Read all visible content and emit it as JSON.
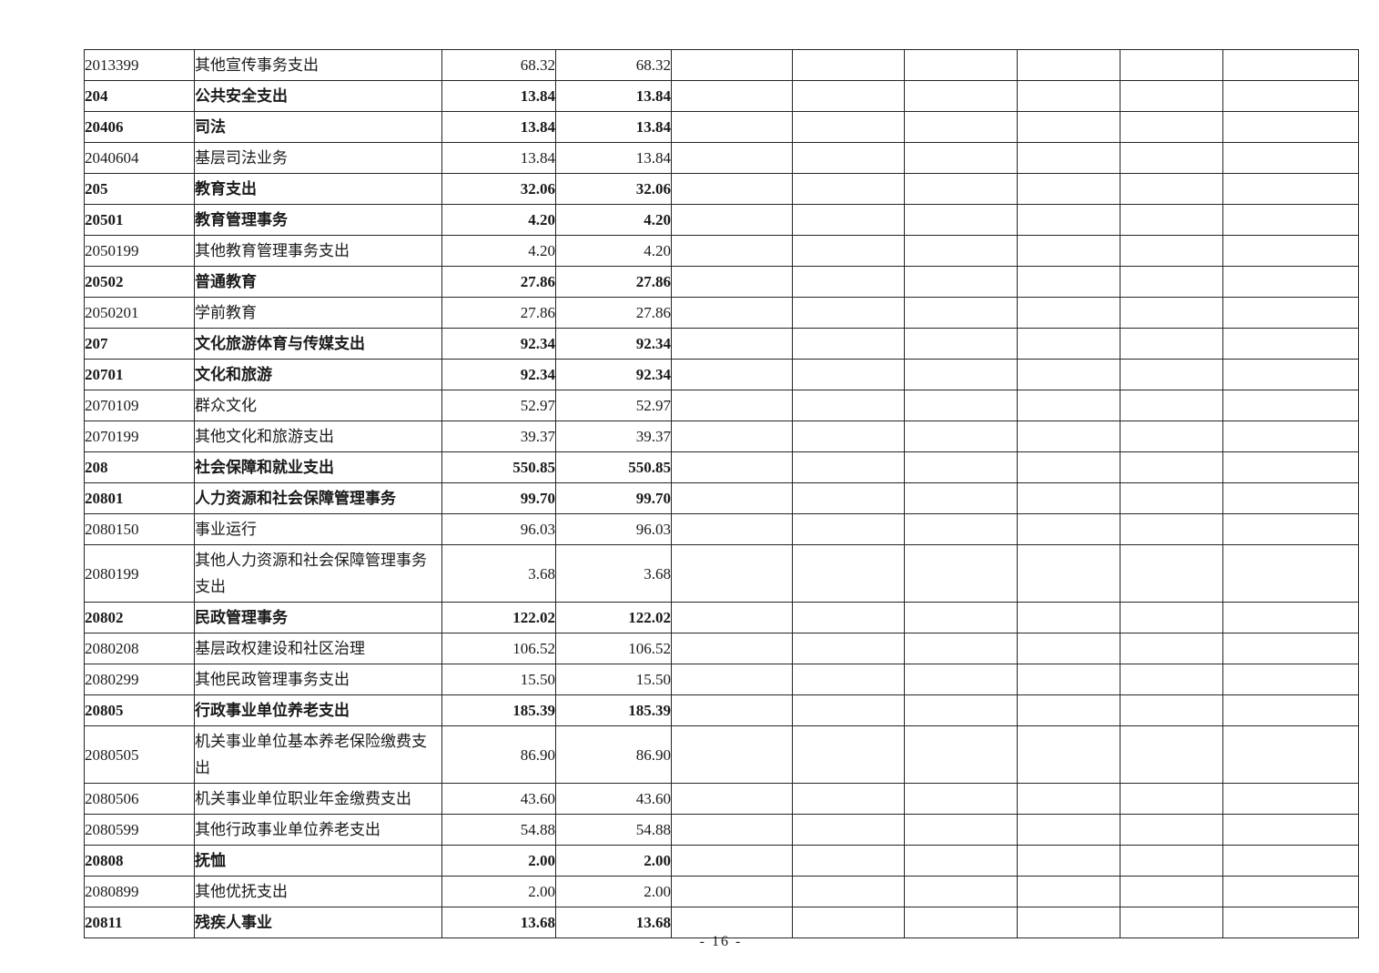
{
  "page": {
    "page_number": "- 16 -"
  },
  "table": {
    "column_keys": [
      "code",
      "name",
      "amount1",
      "amount2",
      "empty1",
      "empty2",
      "empty3",
      "empty4",
      "empty5",
      "empty6"
    ],
    "rows": [
      {
        "code": "2013399",
        "name": "其他宣传事务支出",
        "amount1": "68.32",
        "amount2": "68.32",
        "bold": false,
        "tall": false
      },
      {
        "code": "204",
        "name": "公共安全支出",
        "amount1": "13.84",
        "amount2": "13.84",
        "bold": true,
        "tall": false
      },
      {
        "code": "20406",
        "name": "司法",
        "amount1": "13.84",
        "amount2": "13.84",
        "bold": true,
        "tall": false
      },
      {
        "code": "2040604",
        "name": "基层司法业务",
        "amount1": "13.84",
        "amount2": "13.84",
        "bold": false,
        "tall": false
      },
      {
        "code": "205",
        "name": "教育支出",
        "amount1": "32.06",
        "amount2": "32.06",
        "bold": true,
        "tall": false
      },
      {
        "code": "20501",
        "name": "教育管理事务",
        "amount1": "4.20",
        "amount2": "4.20",
        "bold": true,
        "tall": false
      },
      {
        "code": "2050199",
        "name": "其他教育管理事务支出",
        "amount1": "4.20",
        "amount2": "4.20",
        "bold": false,
        "tall": false
      },
      {
        "code": "20502",
        "name": "普通教育",
        "amount1": "27.86",
        "amount2": "27.86",
        "bold": true,
        "tall": false
      },
      {
        "code": "2050201",
        "name": "学前教育",
        "amount1": "27.86",
        "amount2": "27.86",
        "bold": false,
        "tall": false
      },
      {
        "code": "207",
        "name": "文化旅游体育与传媒支出",
        "amount1": "92.34",
        "amount2": "92.34",
        "bold": true,
        "tall": false
      },
      {
        "code": "20701",
        "name": "文化和旅游",
        "amount1": "92.34",
        "amount2": "92.34",
        "bold": true,
        "tall": false
      },
      {
        "code": "2070109",
        "name": "群众文化",
        "amount1": "52.97",
        "amount2": "52.97",
        "bold": false,
        "tall": false
      },
      {
        "code": "2070199",
        "name": "其他文化和旅游支出",
        "amount1": "39.37",
        "amount2": "39.37",
        "bold": false,
        "tall": false
      },
      {
        "code": "208",
        "name": "社会保障和就业支出",
        "amount1": "550.85",
        "amount2": "550.85",
        "bold": true,
        "tall": false
      },
      {
        "code": "20801",
        "name": "人力资源和社会保障管理事务",
        "amount1": "99.70",
        "amount2": "99.70",
        "bold": true,
        "tall": false
      },
      {
        "code": "2080150",
        "name": "事业运行",
        "amount1": "96.03",
        "amount2": "96.03",
        "bold": false,
        "tall": false
      },
      {
        "code": "2080199",
        "name": "其他人力资源和社会保障管理事务支出",
        "amount1": "3.68",
        "amount2": "3.68",
        "bold": false,
        "tall": true
      },
      {
        "code": "20802",
        "name": "民政管理事务",
        "amount1": "122.02",
        "amount2": "122.02",
        "bold": true,
        "tall": false
      },
      {
        "code": "2080208",
        "name": "基层政权建设和社区治理",
        "amount1": "106.52",
        "amount2": "106.52",
        "bold": false,
        "tall": false
      },
      {
        "code": "2080299",
        "name": "其他民政管理事务支出",
        "amount1": "15.50",
        "amount2": "15.50",
        "bold": false,
        "tall": false
      },
      {
        "code": "20805",
        "name": "行政事业单位养老支出",
        "amount1": "185.39",
        "amount2": "185.39",
        "bold": true,
        "tall": false
      },
      {
        "code": "2080505",
        "name": "机关事业单位基本养老保险缴费支出",
        "amount1": "86.90",
        "amount2": "86.90",
        "bold": false,
        "tall": true
      },
      {
        "code": "2080506",
        "name": "机关事业单位职业年金缴费支出",
        "amount1": "43.60",
        "amount2": "43.60",
        "bold": false,
        "tall": false
      },
      {
        "code": "2080599",
        "name": "其他行政事业单位养老支出",
        "amount1": "54.88",
        "amount2": "54.88",
        "bold": false,
        "tall": false
      },
      {
        "code": "20808",
        "name": "抚恤",
        "amount1": "2.00",
        "amount2": "2.00",
        "bold": true,
        "tall": false
      },
      {
        "code": "2080899",
        "name": "其他优抚支出",
        "amount1": "2.00",
        "amount2": "2.00",
        "bold": false,
        "tall": false
      },
      {
        "code": "20811",
        "name": "残疾人事业",
        "amount1": "13.68",
        "amount2": "13.68",
        "bold": true,
        "tall": false
      }
    ]
  }
}
